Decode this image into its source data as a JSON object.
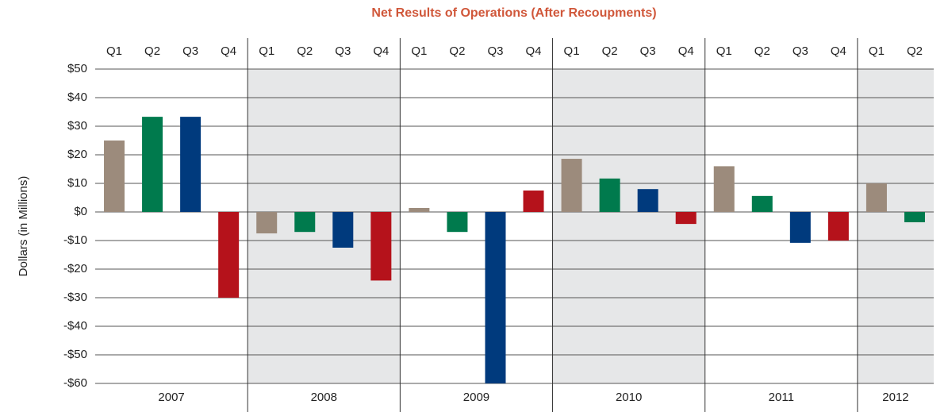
{
  "chart_data": {
    "type": "bar",
    "title": "Net Results of Operations (After Recoupments)",
    "title_color": "#d0573a",
    "y_label": "Dollars (in Millions)",
    "categories": [
      "2007",
      "2008",
      "2009",
      "2010",
      "2011",
      "2012"
    ],
    "series": [
      {
        "name": "Q1",
        "color": "#9c8b7c",
        "values": [
          25,
          -7.5,
          1.4,
          18.6,
          16,
          10
        ]
      },
      {
        "name": "Q2",
        "color": "#007a4d",
        "values": [
          33.3,
          -7,
          -7,
          11.7,
          5.6,
          -3.6
        ]
      },
      {
        "name": "Q3",
        "color": "#003a7d",
        "values": [
          33.3,
          -12.5,
          -60,
          8,
          -10.8,
          null
        ]
      },
      {
        "name": "Q4",
        "color": "#b5121b",
        "values": [
          -30,
          -24,
          7.5,
          -4.2,
          -10,
          null
        ]
      }
    ],
    "shaded": [
      false,
      true,
      false,
      true,
      false,
      true
    ],
    "shade_color": "#e6e7e8",
    "ylim": [
      -60,
      50
    ],
    "yticks": [
      {
        "value": -60,
        "label": "-$60"
      },
      {
        "value": -50,
        "label": "-$50"
      },
      {
        "value": -40,
        "label": "-$40"
      },
      {
        "value": -30,
        "label": "-$30"
      },
      {
        "value": -20,
        "label": "-$20"
      },
      {
        "value": -10,
        "label": "-$10"
      },
      {
        "value": 0,
        "label": "$0"
      },
      {
        "value": 10,
        "label": "$10"
      },
      {
        "value": 20,
        "label": "$20"
      },
      {
        "value": 30,
        "label": "$30"
      },
      {
        "value": 40,
        "label": "$40"
      },
      {
        "value": 50,
        "label": "$50"
      }
    ],
    "grid": true
  }
}
